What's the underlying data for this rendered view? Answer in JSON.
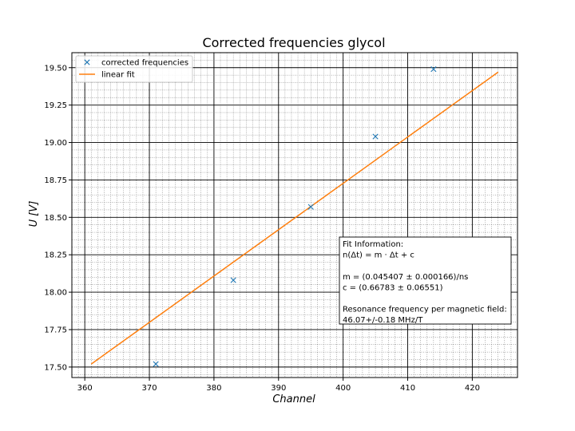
{
  "chart_data": {
    "type": "scatter",
    "title": "Corrected frequencies glycol",
    "xlabel": "Channel",
    "ylabel": "U [V]",
    "xlim": [
      358,
      427
    ],
    "ylim": [
      17.43,
      19.6
    ],
    "x_ticks": [
      360,
      370,
      380,
      390,
      400,
      410,
      420
    ],
    "y_ticks": [
      17.5,
      17.75,
      18.0,
      18.25,
      18.5,
      18.75,
      19.0,
      19.25,
      19.5
    ],
    "x_tick_labels": [
      "360",
      "370",
      "380",
      "390",
      "400",
      "410",
      "420"
    ],
    "y_tick_labels": [
      "17.50",
      "17.75",
      "18.00",
      "18.25",
      "18.50",
      "18.75",
      "19.00",
      "19.25",
      "19.50"
    ],
    "grid": "major and minor",
    "legend_position": "top-left",
    "series": [
      {
        "name": "corrected frequencies",
        "type": "scatter",
        "marker": "x",
        "color": "#1f77b4",
        "x": [
          371,
          383,
          395,
          405,
          414
        ],
        "y": [
          17.52,
          18.08,
          18.57,
          19.04,
          19.49
        ]
      },
      {
        "name": "linear fit",
        "type": "line",
        "color": "#ff7f0e",
        "x": [
          361,
          424
        ],
        "y": [
          17.52,
          19.47
        ]
      }
    ],
    "annotation": {
      "position": "bottom-right",
      "lines": [
        "Fit Information:",
        "n(Δt) = m · Δt + c",
        "",
        "m = (0.045407 ± 0.000166)/ns",
        "c = (0.66783 ± 0.06551)",
        "",
        "Resonance frequency per magnetic field:",
        "46.07+/-0.18 MHz/T"
      ]
    }
  }
}
